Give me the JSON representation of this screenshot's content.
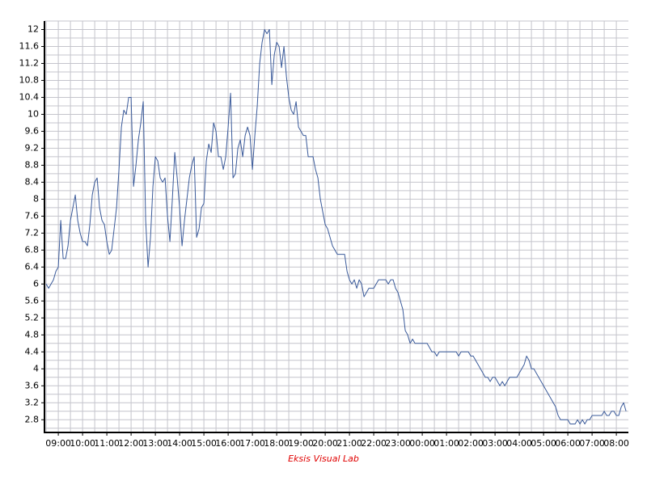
{
  "chart_data": {
    "type": "line",
    "credit": "Eksis Visual Lab",
    "color": "#3a5a9a",
    "grid": true,
    "minor_grid": true,
    "xlim": [
      8.43,
      32.43
    ],
    "xticks": [
      {
        "value": 9,
        "label": "09:00"
      },
      {
        "value": 10,
        "label": "10:00"
      },
      {
        "value": 11,
        "label": "11:00"
      },
      {
        "value": 12,
        "label": "12:00"
      },
      {
        "value": 13,
        "label": "13:00"
      },
      {
        "value": 14,
        "label": "14:00"
      },
      {
        "value": 15,
        "label": "15:00"
      },
      {
        "value": 16,
        "label": "16:00"
      },
      {
        "value": 17,
        "label": "17:00"
      },
      {
        "value": 18,
        "label": "18:00"
      },
      {
        "value": 19,
        "label": "19:00"
      },
      {
        "value": 20,
        "label": "20:00"
      },
      {
        "value": 21,
        "label": "21:00"
      },
      {
        "value": 22,
        "label": "22:00"
      },
      {
        "value": 23,
        "label": "23:00"
      },
      {
        "value": 24,
        "label": "00:00"
      },
      {
        "value": 25,
        "label": "01:00"
      },
      {
        "value": 26,
        "label": "02:00"
      },
      {
        "value": 27,
        "label": "03:00"
      },
      {
        "value": 28,
        "label": "04:00"
      },
      {
        "value": 29,
        "label": "05:00"
      },
      {
        "value": 30,
        "label": "06:00"
      },
      {
        "value": 31,
        "label": "07:00"
      },
      {
        "value": 32,
        "label": "08:00"
      }
    ],
    "ylim": [
      2.5,
      12.2
    ],
    "yticks": [
      2.8,
      3.2,
      3.6,
      4,
      4.4,
      4.8,
      5.2,
      5.6,
      6,
      6.4,
      6.8,
      7.2,
      7.6,
      8,
      8.4,
      8.8,
      9.2,
      9.6,
      10,
      10.4,
      10.8,
      11.2,
      11.6,
      12
    ],
    "x": [
      8.5,
      8.6,
      8.7,
      8.8,
      8.9,
      9.0,
      9.1,
      9.2,
      9.3,
      9.4,
      9.5,
      9.6,
      9.7,
      9.8,
      9.9,
      10.0,
      10.1,
      10.2,
      10.3,
      10.4,
      10.5,
      10.6,
      10.7,
      10.8,
      10.9,
      11.0,
      11.1,
      11.2,
      11.3,
      11.4,
      11.5,
      11.6,
      11.7,
      11.8,
      11.9,
      12.0,
      12.1,
      12.2,
      12.3,
      12.4,
      12.5,
      12.6,
      12.7,
      12.8,
      12.9,
      13.0,
      13.1,
      13.2,
      13.3,
      13.4,
      13.5,
      13.6,
      13.7,
      13.8,
      13.9,
      14.0,
      14.1,
      14.2,
      14.3,
      14.4,
      14.5,
      14.6,
      14.7,
      14.8,
      14.9,
      15.0,
      15.1,
      15.2,
      15.3,
      15.4,
      15.5,
      15.6,
      15.7,
      15.8,
      15.9,
      16.0,
      16.1,
      16.2,
      16.3,
      16.4,
      16.5,
      16.6,
      16.7,
      16.8,
      16.9,
      17.0,
      17.1,
      17.2,
      17.3,
      17.4,
      17.5,
      17.6,
      17.7,
      17.8,
      17.9,
      18.0,
      18.1,
      18.2,
      18.3,
      18.4,
      18.5,
      18.6,
      18.7,
      18.8,
      18.9,
      19.0,
      19.1,
      19.2,
      19.3,
      19.4,
      19.5,
      19.6,
      19.7,
      19.8,
      19.9,
      20.0,
      20.1,
      20.2,
      20.3,
      20.4,
      20.5,
      20.6,
      20.7,
      20.8,
      20.9,
      21.0,
      21.1,
      21.2,
      21.3,
      21.4,
      21.5,
      21.6,
      21.7,
      21.8,
      21.9,
      22.0,
      22.1,
      22.2,
      22.3,
      22.4,
      22.5,
      22.6,
      22.7,
      22.8,
      22.9,
      23.0,
      23.1,
      23.2,
      23.3,
      23.4,
      23.5,
      23.6,
      23.7,
      23.8,
      23.9,
      24.0,
      24.1,
      24.2,
      24.3,
      24.4,
      24.5,
      24.6,
      24.7,
      24.8,
      24.9,
      25.0,
      25.1,
      25.2,
      25.3,
      25.4,
      25.5,
      25.6,
      25.7,
      25.8,
      25.9,
      26.0,
      26.1,
      26.2,
      26.3,
      26.4,
      26.5,
      26.6,
      26.7,
      26.8,
      26.9,
      27.0,
      27.1,
      27.2,
      27.3,
      27.4,
      27.5,
      27.6,
      27.7,
      27.8,
      27.9,
      28.0,
      28.1,
      28.2,
      28.3,
      28.4,
      28.5,
      28.6,
      28.7,
      28.8,
      28.9,
      29.0,
      29.1,
      29.2,
      29.3,
      29.4,
      29.5,
      29.6,
      29.7,
      29.8,
      29.9,
      30.0,
      30.1,
      30.2,
      30.3,
      30.4,
      30.5,
      30.6,
      30.7,
      30.8,
      30.9,
      31.0,
      31.1,
      31.2,
      31.3,
      31.4,
      31.5,
      31.6,
      31.7,
      31.8,
      31.9,
      32.0,
      32.1,
      32.2,
      32.3,
      32.4
    ],
    "values": [
      6.0,
      5.9,
      6.0,
      6.1,
      6.3,
      6.4,
      7.5,
      6.6,
      6.6,
      6.9,
      7.5,
      7.8,
      8.1,
      7.5,
      7.2,
      7.0,
      7.0,
      6.9,
      7.4,
      8.1,
      8.4,
      8.5,
      7.8,
      7.5,
      7.4,
      7.0,
      6.7,
      6.8,
      7.3,
      7.8,
      8.7,
      9.7,
      10.1,
      10.0,
      10.4,
      10.4,
      8.3,
      8.8,
      9.4,
      9.8,
      10.3,
      7.5,
      6.4,
      7.1,
      8.3,
      9.0,
      8.9,
      8.5,
      8.4,
      8.5,
      7.6,
      7.0,
      8.0,
      9.1,
      8.5,
      7.8,
      6.9,
      7.5,
      8.0,
      8.5,
      8.8,
      9.0,
      7.1,
      7.3,
      7.8,
      7.9,
      8.9,
      9.3,
      9.1,
      9.8,
      9.6,
      9.0,
      9.0,
      8.7,
      9.0,
      9.7,
      10.5,
      8.5,
      8.6,
      9.2,
      9.4,
      9.0,
      9.5,
      9.7,
      9.5,
      8.7,
      9.5,
      10.2,
      11.2,
      11.7,
      12.0,
      11.9,
      12.0,
      10.7,
      11.4,
      11.7,
      11.6,
      11.1,
      11.6,
      10.9,
      10.4,
      10.1,
      10.0,
      10.3,
      9.7,
      9.6,
      9.5,
      9.5,
      9.0,
      9.0,
      9.0,
      8.7,
      8.5,
      8.0,
      7.7,
      7.4,
      7.3,
      7.1,
      6.9,
      6.8,
      6.7,
      6.7,
      6.7,
      6.7,
      6.3,
      6.1,
      6.0,
      6.1,
      5.9,
      6.1,
      6.0,
      5.7,
      5.8,
      5.9,
      5.9,
      5.9,
      6.0,
      6.1,
      6.1,
      6.1,
      6.1,
      6.0,
      6.1,
      6.1,
      5.9,
      5.8,
      5.6,
      5.4,
      4.9,
      4.8,
      4.6,
      4.7,
      4.6,
      4.6,
      4.6,
      4.6,
      4.6,
      4.6,
      4.5,
      4.4,
      4.4,
      4.3,
      4.4,
      4.4,
      4.4,
      4.4,
      4.4,
      4.4,
      4.4,
      4.4,
      4.3,
      4.4,
      4.4,
      4.4,
      4.4,
      4.3,
      4.3,
      4.2,
      4.1,
      4.0,
      3.9,
      3.8,
      3.8,
      3.7,
      3.8,
      3.8,
      3.7,
      3.6,
      3.7,
      3.6,
      3.7,
      3.8,
      3.8,
      3.8,
      3.8,
      3.9,
      4.0,
      4.1,
      4.3,
      4.2,
      4.0,
      4.0,
      3.9,
      3.8,
      3.7,
      3.6,
      3.5,
      3.4,
      3.3,
      3.2,
      3.1,
      2.9,
      2.8,
      2.8,
      2.8,
      2.8,
      2.7,
      2.7,
      2.7,
      2.8,
      2.7,
      2.8,
      2.7,
      2.8,
      2.8,
      2.9,
      2.9,
      2.9,
      2.9,
      2.9,
      3.0,
      2.9,
      2.9,
      3.0,
      3.0,
      2.9,
      2.9,
      3.1,
      3.2,
      3.0
    ]
  }
}
